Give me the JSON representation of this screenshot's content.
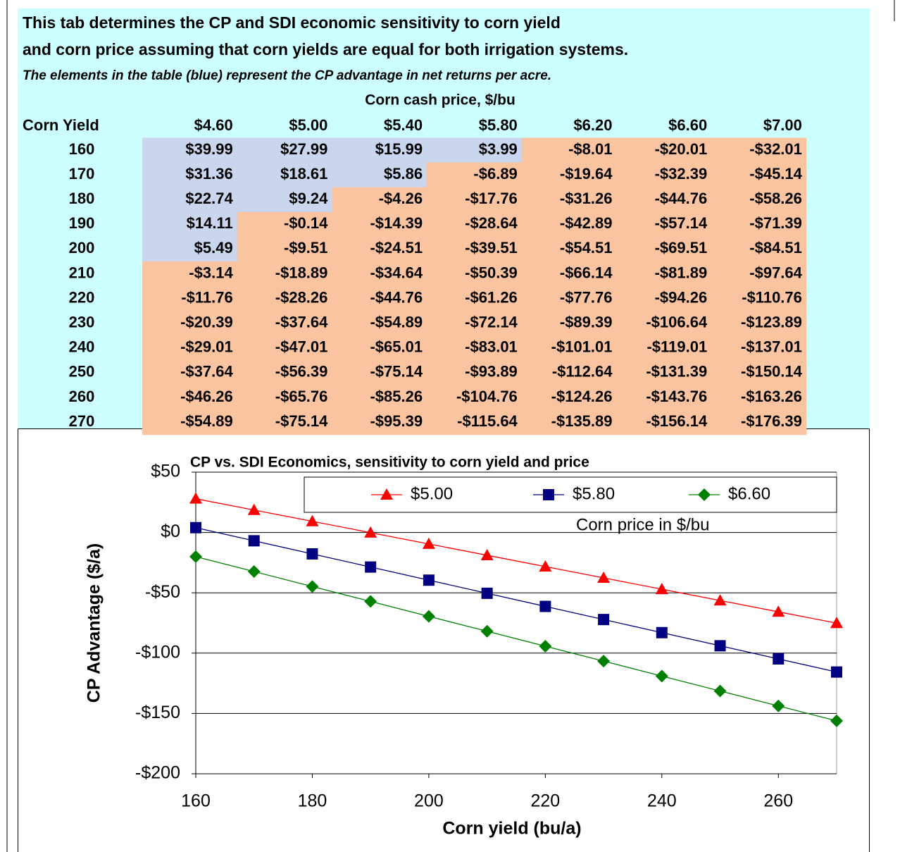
{
  "header": {
    "line1": "This tab determines the CP and SDI economic sensitivity to corn yield",
    "line2": "and corn price assuming that corn yields are equal for both irrigation systems.",
    "note": "The elements in the table (blue) represent the CP advantage in net returns per acre."
  },
  "table": {
    "caption": "Corn cash price, $/bu",
    "corner": "Corn Yield",
    "columns": [
      "$4.60",
      "$5.00",
      "$5.40",
      "$5.80",
      "$6.20",
      "$6.60",
      "$7.00"
    ],
    "rows": [
      [
        "160",
        "$39.99",
        "$27.99",
        "$15.99",
        "$3.99",
        "-$8.01",
        "-$20.01",
        "-$32.01"
      ],
      [
        "170",
        "$31.36",
        "$18.61",
        "$5.86",
        "-$6.89",
        "-$19.64",
        "-$32.39",
        "-$45.14"
      ],
      [
        "180",
        "$22.74",
        "$9.24",
        "-$4.26",
        "-$17.76",
        "-$31.26",
        "-$44.76",
        "-$58.26"
      ],
      [
        "190",
        "$14.11",
        "-$0.14",
        "-$14.39",
        "-$28.64",
        "-$42.89",
        "-$57.14",
        "-$71.39"
      ],
      [
        "200",
        "$5.49",
        "-$9.51",
        "-$24.51",
        "-$39.51",
        "-$54.51",
        "-$69.51",
        "-$84.51"
      ],
      [
        "210",
        "-$3.14",
        "-$18.89",
        "-$34.64",
        "-$50.39",
        "-$66.14",
        "-$81.89",
        "-$97.64"
      ],
      [
        "220",
        "-$11.76",
        "-$28.26",
        "-$44.76",
        "-$61.26",
        "-$77.76",
        "-$94.26",
        "-$110.76"
      ],
      [
        "230",
        "-$20.39",
        "-$37.64",
        "-$54.89",
        "-$72.14",
        "-$89.39",
        "-$106.64",
        "-$123.89"
      ],
      [
        "240",
        "-$29.01",
        "-$47.01",
        "-$65.01",
        "-$83.01",
        "-$101.01",
        "-$119.01",
        "-$137.01"
      ],
      [
        "250",
        "-$37.64",
        "-$56.39",
        "-$75.14",
        "-$93.89",
        "-$112.64",
        "-$131.39",
        "-$150.14"
      ],
      [
        "260",
        "-$46.26",
        "-$65.76",
        "-$85.26",
        "-$104.76",
        "-$124.26",
        "-$143.76",
        "-$163.26"
      ],
      [
        "270",
        "-$54.89",
        "-$75.14",
        "-$95.39",
        "-$115.64",
        "-$135.89",
        "-$156.14",
        "-$176.39"
      ]
    ]
  },
  "chart_data": {
    "type": "line",
    "title": "CP vs. SDI Economics, sensitivity to corn yield and price",
    "x_label": "Corn yield (bu/a)",
    "y_label": "CP Advantage ($/a)",
    "legend_title": "Corn price in $/bu",
    "x": [
      160,
      170,
      180,
      190,
      200,
      210,
      220,
      230,
      240,
      250,
      260,
      270
    ],
    "series": [
      {
        "name": "$5.00",
        "color": "#ff0000",
        "marker": "triangle",
        "values": [
          27.99,
          18.61,
          9.24,
          -0.14,
          -9.51,
          -18.89,
          -28.26,
          -37.64,
          -47.01,
          -56.39,
          -65.76,
          -75.14
        ]
      },
      {
        "name": "$5.80",
        "color": "#000080",
        "marker": "square",
        "values": [
          3.99,
          -6.89,
          -17.76,
          -28.64,
          -39.51,
          -50.39,
          -61.26,
          -72.14,
          -83.01,
          -93.89,
          -104.76,
          -115.64
        ]
      },
      {
        "name": "$6.60",
        "color": "#008000",
        "marker": "diamond",
        "values": [
          -20.01,
          -32.39,
          -44.76,
          -57.14,
          -69.51,
          -81.89,
          -94.26,
          -106.64,
          -119.01,
          -131.39,
          -143.76,
          -156.14
        ]
      }
    ],
    "xlim": [
      160,
      270
    ],
    "xticks": [
      160,
      180,
      200,
      220,
      240,
      260
    ],
    "ylim": [
      -200,
      50
    ],
    "yticks": [
      {
        "value": -200,
        "label": "-$200"
      },
      {
        "value": -150,
        "label": "-$150"
      },
      {
        "value": -100,
        "label": "-$100"
      },
      {
        "value": -50,
        "label": "-$50"
      },
      {
        "value": 0,
        "label": "$0"
      },
      {
        "value": 50,
        "label": "$50"
      }
    ],
    "grid": true
  }
}
